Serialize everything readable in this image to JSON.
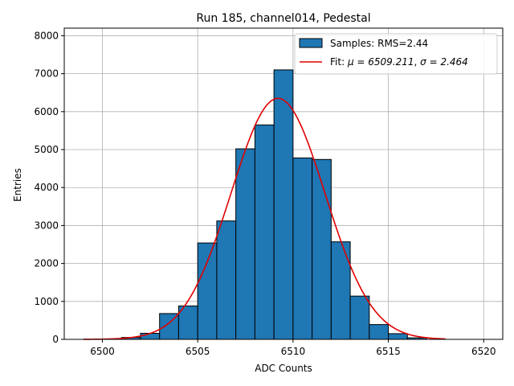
{
  "chart_data": {
    "type": "bar",
    "title": "Run 185, channel014, Pedestal",
    "xlabel": "ADC Counts",
    "ylabel": "Entries",
    "xlim": [
      6498.0,
      6521.0
    ],
    "ylim": [
      0,
      8200
    ],
    "xticks": [
      6500,
      6505,
      6510,
      6515,
      6520
    ],
    "yticks": [
      0,
      1000,
      2000,
      3000,
      4000,
      5000,
      6000,
      7000,
      8000
    ],
    "grid": true,
    "legend_position": "top-right",
    "bin_width": 1,
    "bins": [
      {
        "x": 6501,
        "value": 50
      },
      {
        "x": 6502,
        "value": 160
      },
      {
        "x": 6503,
        "value": 680
      },
      {
        "x": 6504,
        "value": 880
      },
      {
        "x": 6505,
        "value": 2540
      },
      {
        "x": 6506,
        "value": 3120
      },
      {
        "x": 6507,
        "value": 5020
      },
      {
        "x": 6508,
        "value": 5650
      },
      {
        "x": 6509,
        "value": 7100
      },
      {
        "x": 6510,
        "value": 4780
      },
      {
        "x": 6511,
        "value": 4740
      },
      {
        "x": 6512,
        "value": 2570
      },
      {
        "x": 6513,
        "value": 1140
      },
      {
        "x": 6514,
        "value": 390
      },
      {
        "x": 6515,
        "value": 150
      },
      {
        "x": 6516,
        "value": 40
      }
    ],
    "fit": {
      "mu": 6509.211,
      "sigma": 2.464,
      "amplitude": 6350,
      "x_range": [
        6499.0,
        6518.0
      ]
    },
    "series": [
      {
        "name": "Samples: RMS=2.44",
        "kind": "histogram",
        "color": "#1f77b4"
      },
      {
        "name_prefix": "Fit: ",
        "mu_label": "μ = 6509.211",
        "sigma_label": "σ = 2.464",
        "kind": "line",
        "color": "#e00000"
      }
    ]
  }
}
